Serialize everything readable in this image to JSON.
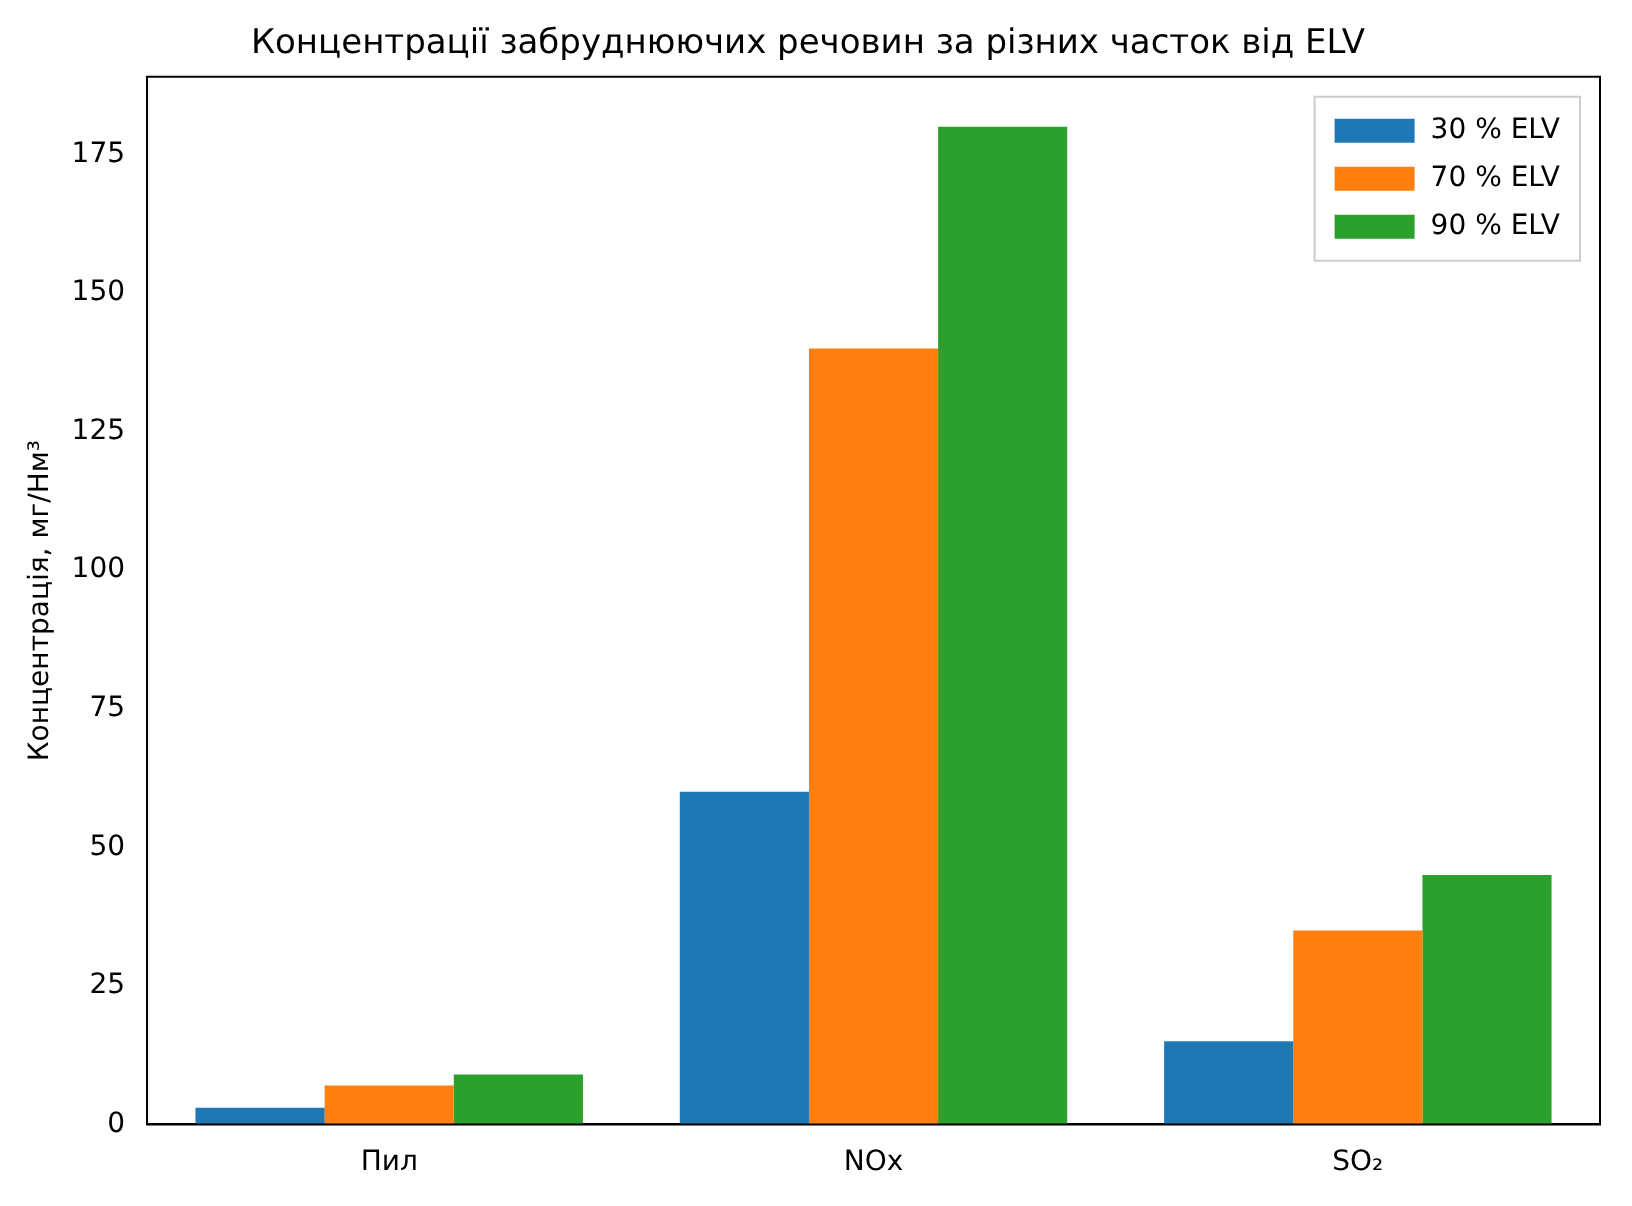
{
  "chart_data": {
    "type": "bar",
    "title": "Концентрації забруднюючих речовин за різних часток від ELV",
    "ylabel": "Концентрація, мг/Нм³",
    "categories": [
      "Пил",
      "NOx",
      "SO₂"
    ],
    "series": [
      {
        "name": "30 % ELV",
        "color": "#1f77b4",
        "values": [
          3,
          60,
          15
        ]
      },
      {
        "name": "70 % ELV",
        "color": "#ff7f0e",
        "values": [
          7,
          140,
          35
        ]
      },
      {
        "name": "90 % ELV",
        "color": "#2ca02c",
        "values": [
          9,
          180,
          45
        ]
      }
    ],
    "ylim": [
      0,
      189
    ],
    "yticks": [
      0,
      25,
      50,
      75,
      100,
      125,
      150,
      175
    ],
    "grid": false,
    "legend": "top right"
  }
}
